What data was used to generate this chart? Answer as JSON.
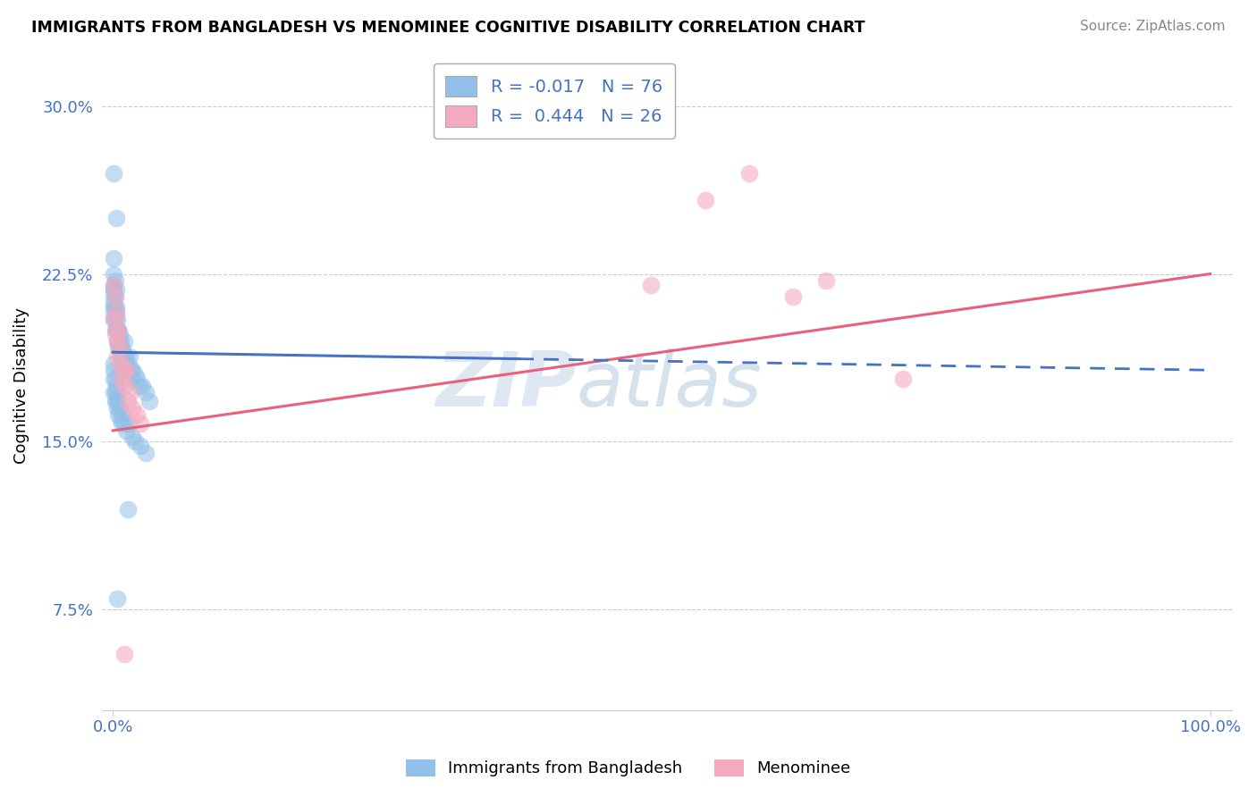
{
  "title": "IMMIGRANTS FROM BANGLADESH VS MENOMINEE COGNITIVE DISABILITY CORRELATION CHART",
  "source": "Source: ZipAtlas.com",
  "ylabel": "Cognitive Disability",
  "xlim": [
    -0.01,
    1.02
  ],
  "ylim": [
    0.03,
    0.32
  ],
  "yticks": [
    0.075,
    0.15,
    0.225,
    0.3
  ],
  "ytick_labels": [
    "7.5%",
    "15.0%",
    "22.5%",
    "30.0%"
  ],
  "xticks": [
    0.0,
    1.0
  ],
  "xtick_labels": [
    "0.0%",
    "100.0%"
  ],
  "blue_color": "#93C0E8",
  "pink_color": "#F4AABE",
  "blue_line_color": "#4472C4",
  "pink_line_color": "#E8607A",
  "accent_color": "#4472C4",
  "R_blue": -0.017,
  "N_blue": 76,
  "R_pink": 0.444,
  "N_pink": 26,
  "legend_label_blue": "Immigrants from Bangladesh",
  "legend_label_pink": "Menominee",
  "watermark": "ZIPatlas",
  "blue_scatter_x": [
    0.001,
    0.003,
    0.001,
    0.001,
    0.001,
    0.001,
    0.001,
    0.001,
    0.001,
    0.001,
    0.001,
    0.001,
    0.002,
    0.002,
    0.002,
    0.002,
    0.002,
    0.003,
    0.003,
    0.003,
    0.003,
    0.004,
    0.004,
    0.004,
    0.005,
    0.005,
    0.005,
    0.006,
    0.006,
    0.007,
    0.007,
    0.008,
    0.008,
    0.009,
    0.01,
    0.01,
    0.011,
    0.012,
    0.013,
    0.014,
    0.015,
    0.016,
    0.017,
    0.018,
    0.02,
    0.022,
    0.024,
    0.027,
    0.03,
    0.033,
    0.001,
    0.001,
    0.001,
    0.001,
    0.002,
    0.002,
    0.002,
    0.003,
    0.003,
    0.004,
    0.004,
    0.005,
    0.005,
    0.006,
    0.007,
    0.008,
    0.009,
    0.01,
    0.012,
    0.015,
    0.018,
    0.02,
    0.025,
    0.03,
    0.014,
    0.004
  ],
  "blue_scatter_y": [
    0.27,
    0.25,
    0.232,
    0.225,
    0.22,
    0.218,
    0.215,
    0.212,
    0.218,
    0.21,
    0.205,
    0.208,
    0.222,
    0.215,
    0.205,
    0.2,
    0.21,
    0.218,
    0.21,
    0.208,
    0.2,
    0.205,
    0.2,
    0.195,
    0.2,
    0.195,
    0.192,
    0.198,
    0.192,
    0.195,
    0.188,
    0.192,
    0.185,
    0.19,
    0.195,
    0.188,
    0.185,
    0.188,
    0.182,
    0.185,
    0.188,
    0.182,
    0.178,
    0.182,
    0.18,
    0.178,
    0.175,
    0.175,
    0.172,
    0.168,
    0.185,
    0.182,
    0.178,
    0.172,
    0.178,
    0.172,
    0.168,
    0.175,
    0.168,
    0.172,
    0.165,
    0.168,
    0.162,
    0.165,
    0.16,
    0.158,
    0.162,
    0.158,
    0.155,
    0.158,
    0.152,
    0.15,
    0.148,
    0.145,
    0.12,
    0.08
  ],
  "pink_scatter_x": [
    0.001,
    0.001,
    0.002,
    0.002,
    0.003,
    0.004,
    0.004,
    0.005,
    0.006,
    0.007,
    0.008,
    0.01,
    0.01,
    0.012,
    0.014,
    0.016,
    0.018,
    0.022,
    0.025,
    0.49,
    0.54,
    0.58,
    0.62,
    0.65,
    0.72,
    0.01
  ],
  "pink_scatter_y": [
    0.22,
    0.205,
    0.215,
    0.198,
    0.208,
    0.195,
    0.188,
    0.2,
    0.192,
    0.185,
    0.178,
    0.182,
    0.175,
    0.182,
    0.168,
    0.172,
    0.165,
    0.162,
    0.158,
    0.22,
    0.258,
    0.27,
    0.215,
    0.222,
    0.178,
    0.055
  ],
  "blue_line_x": [
    0.0,
    0.37,
    0.37,
    1.0
  ],
  "blue_line_y_start": 0.19,
  "blue_line_y_end": 0.182,
  "pink_line_x0": 0.0,
  "pink_line_x1": 1.0,
  "pink_line_y0": 0.155,
  "pink_line_y1": 0.225
}
